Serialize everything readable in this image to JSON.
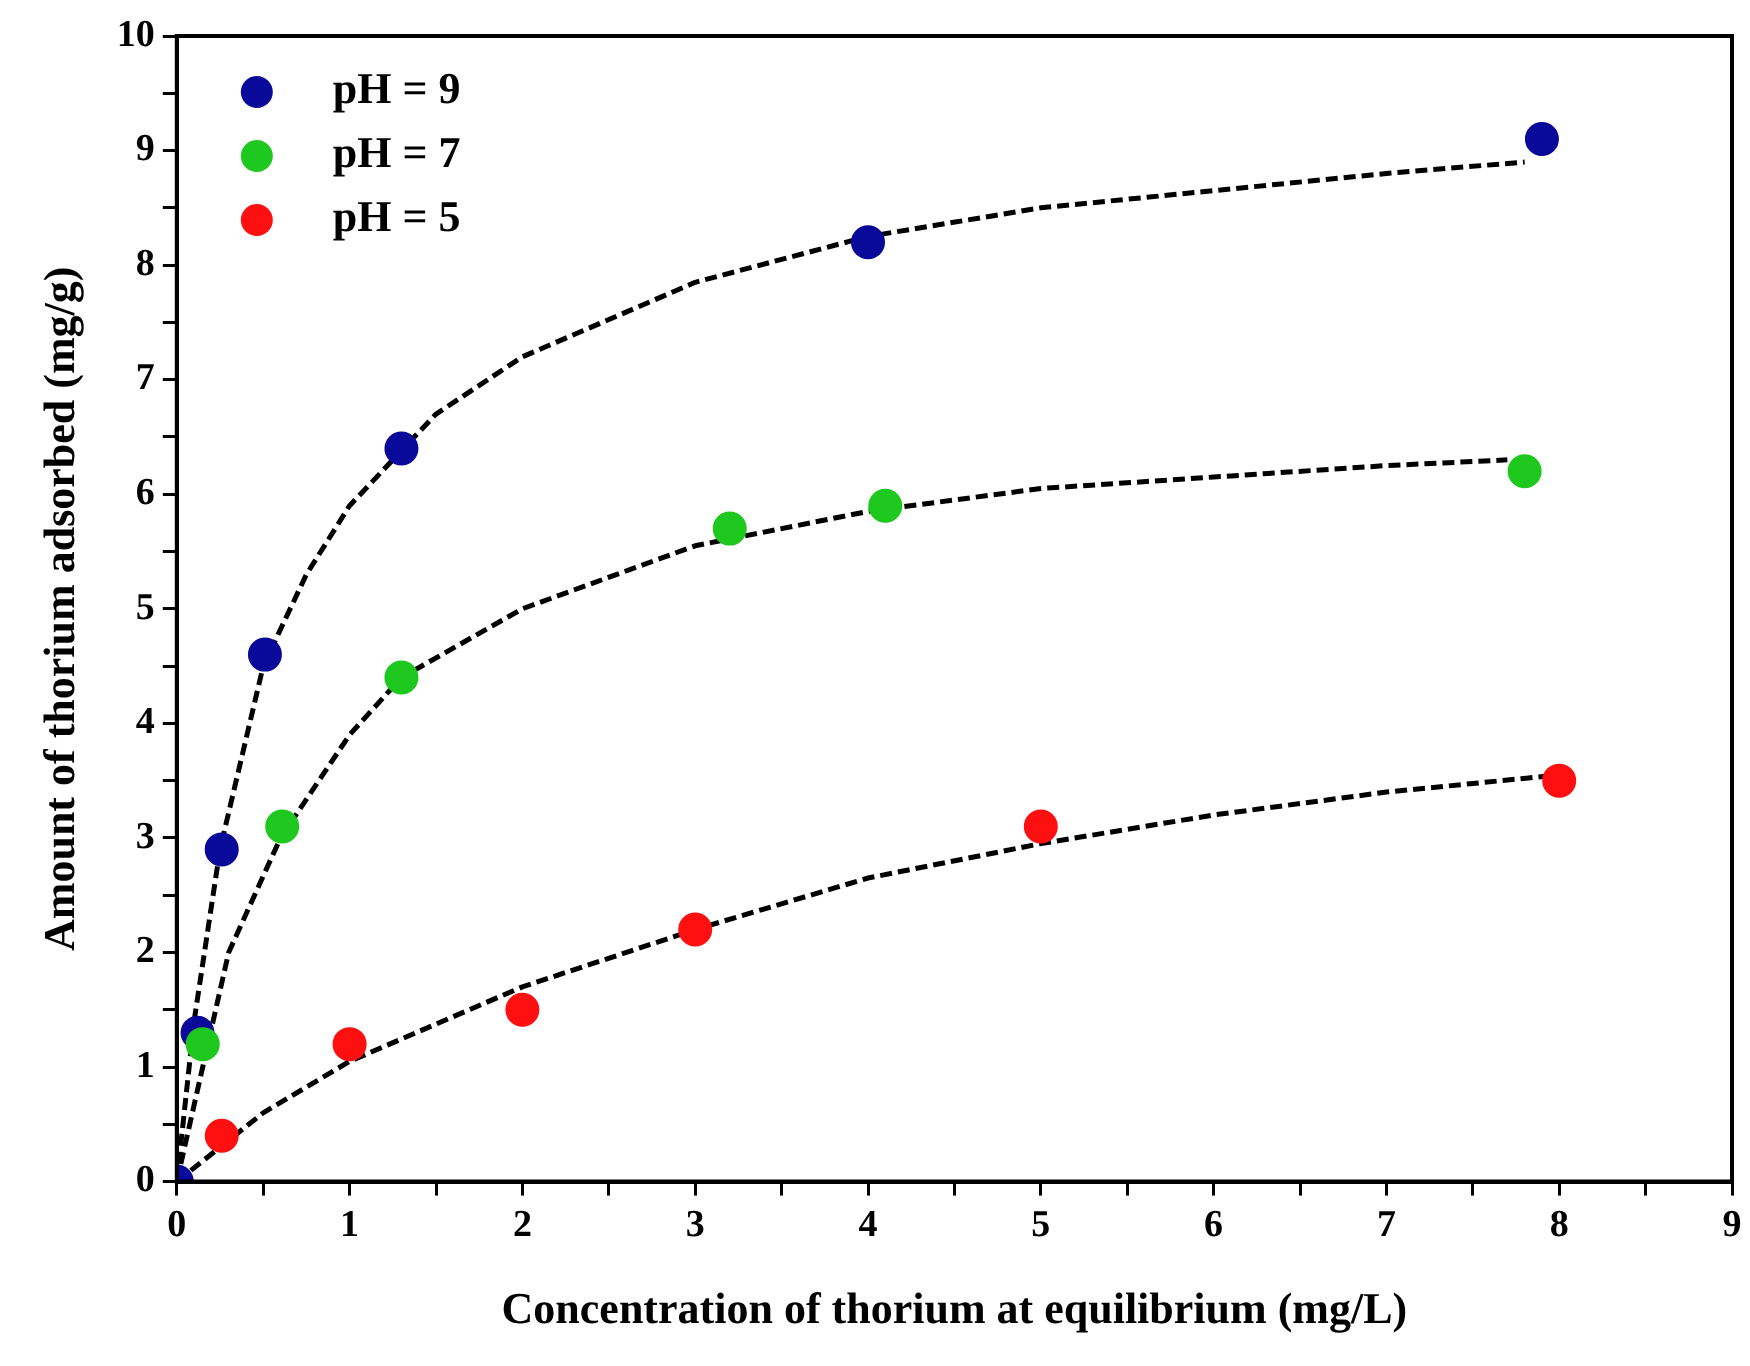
{
  "chart_data": {
    "type": "scatter",
    "xlabel": "Concentration of thorium at equilibrium (mg/L)",
    "ylabel": "Amount of thorium adsorbed (mg/g)",
    "xlim": [
      0,
      9
    ],
    "ylim": [
      0,
      10
    ],
    "xticks": [
      0,
      {
        "value": 0.5,
        "label": null
      },
      1,
      {
        "value": 1.5,
        "label": null
      },
      2,
      {
        "value": 2.5,
        "label": null
      },
      3,
      {
        "value": 3.5,
        "label": null
      },
      4,
      {
        "value": 4.5,
        "label": null
      },
      5,
      {
        "value": 5.5,
        "label": null
      },
      6,
      {
        "value": 6.5,
        "label": null
      },
      7,
      {
        "value": 7.5,
        "label": null
      },
      8,
      {
        "value": 8.5,
        "label": null
      },
      9
    ],
    "yticks": [
      0,
      {
        "value": 0.5,
        "label": null
      },
      1,
      {
        "value": 1.5,
        "label": null
      },
      2,
      {
        "value": 2.5,
        "label": null
      },
      3,
      {
        "value": 3.5,
        "label": null
      },
      4,
      {
        "value": 4.5,
        "label": null
      },
      5,
      {
        "value": 5.5,
        "label": null
      },
      6,
      {
        "value": 6.5,
        "label": null
      },
      7,
      {
        "value": 7.5,
        "label": null
      },
      8,
      {
        "value": 8.5,
        "label": null
      },
      9,
      {
        "value": 9.5,
        "label": null
      },
      10
    ],
    "legend": "top left",
    "marker": "circle",
    "grid": false,
    "series": [
      {
        "name": "pH = 9",
        "color": "#0a0a9a",
        "x": [
          0,
          0.12,
          0.26,
          0.51,
          1.3,
          4.0,
          7.9
        ],
        "values": [
          0,
          1.3,
          2.9,
          4.6,
          6.4,
          8.2,
          9.1
        ]
      },
      {
        "name": "pH = 7",
        "color": "#1ec81e",
        "x": [
          0.15,
          0.61,
          1.3,
          3.2,
          4.1,
          7.8
        ],
        "values": [
          1.2,
          3.1,
          4.4,
          5.7,
          5.9,
          6.2
        ]
      },
      {
        "name": "pH = 5",
        "color": "#ff1010",
        "x": [
          0.26,
          1.0,
          2.0,
          3.0,
          5.0,
          8.0
        ],
        "values": [
          0.4,
          1.2,
          1.5,
          2.2,
          3.1,
          3.5
        ]
      },
      {
        "type": "line",
        "color": "#000000",
        "line_style": "dashed",
        "marker": "none",
        "x": [
          0,
          0.1,
          0.25,
          0.5,
          0.75,
          1,
          1.5,
          2,
          3,
          4,
          5,
          6,
          7,
          7.8
        ],
        "values": [
          0,
          1.4,
          2.9,
          4.5,
          5.3,
          5.9,
          6.7,
          7.2,
          7.85,
          8.25,
          8.5,
          8.65,
          8.8,
          8.9
        ]
      },
      {
        "type": "line",
        "color": "#000000",
        "line_style": "dashed",
        "marker": "none",
        "x": [
          0,
          0.3,
          0.6,
          1,
          1.3,
          2,
          3,
          4,
          5,
          6,
          7,
          7.7
        ],
        "values": [
          0,
          2.0,
          3.0,
          3.9,
          4.4,
          5.0,
          5.55,
          5.85,
          6.05,
          6.15,
          6.25,
          6.3
        ]
      },
      {
        "type": "line",
        "color": "#000000",
        "line_style": "dashed",
        "marker": "none",
        "x": [
          0,
          0.25,
          0.5,
          1,
          2,
          3,
          4,
          5,
          6,
          7,
          8
        ],
        "values": [
          0,
          0.3,
          0.6,
          1.05,
          1.7,
          2.2,
          2.65,
          2.95,
          3.2,
          3.4,
          3.55
        ]
      }
    ]
  }
}
